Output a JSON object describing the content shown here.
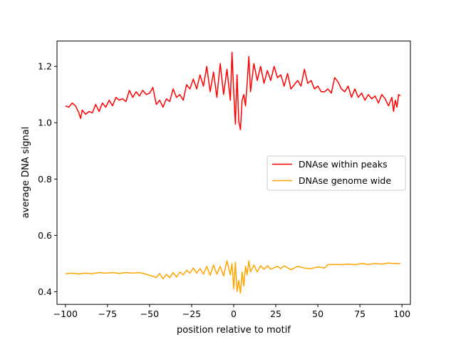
{
  "chart_data": {
    "type": "line",
    "title": "",
    "xlabel": "position relative to motif",
    "ylabel": "average DNA signal",
    "xlim": [
      -105,
      105
    ],
    "ylim": [
      0.355,
      1.29
    ],
    "xticks": [
      -100,
      -75,
      -50,
      -25,
      0,
      25,
      50,
      75,
      100
    ],
    "xtick_labels": [
      "−100",
      "−75",
      "−50",
      "−25",
      "0",
      "25",
      "50",
      "75",
      "100"
    ],
    "yticks": [
      0.4,
      0.6,
      0.8,
      1.0,
      1.2
    ],
    "ytick_labels": [
      "0.4",
      "0.6",
      "0.8",
      "1.0",
      "1.2"
    ],
    "grid": false,
    "legend_location": "center-right",
    "series": [
      {
        "name": "DNAse within peaks",
        "color": "#ff0000",
        "x": [
          -100,
          -98,
          -96,
          -94,
          -92,
          -91,
          -90,
          -88,
          -86,
          -84,
          -82,
          -80,
          -78,
          -76,
          -74,
          -72,
          -70,
          -68,
          -66,
          -64,
          -62,
          -60,
          -58,
          -56,
          -54,
          -52,
          -50,
          -48,
          -46,
          -44,
          -42,
          -40,
          -38,
          -36,
          -34,
          -32,
          -30,
          -28,
          -26,
          -24,
          -22,
          -20,
          -18,
          -16,
          -14,
          -12,
          -10,
          -8,
          -6,
          -4,
          -2,
          -1,
          0,
          1,
          2,
          3,
          4,
          5,
          6,
          7,
          8,
          9,
          10,
          12,
          14,
          16,
          18,
          20,
          22,
          24,
          26,
          28,
          30,
          32,
          34,
          36,
          38,
          40,
          42,
          44,
          46,
          48,
          50,
          52,
          54,
          56,
          58,
          60,
          62,
          64,
          66,
          68,
          70,
          72,
          74,
          76,
          78,
          80,
          82,
          84,
          86,
          88,
          90,
          92,
          94,
          95,
          96,
          97,
          98,
          99
        ],
        "values": [
          1.06,
          1.055,
          1.07,
          1.06,
          1.035,
          1.015,
          1.045,
          1.03,
          1.04,
          1.035,
          1.065,
          1.04,
          1.07,
          1.055,
          1.08,
          1.06,
          1.09,
          1.08,
          1.085,
          1.075,
          1.115,
          1.09,
          1.11,
          1.095,
          1.115,
          1.1,
          1.105,
          1.125,
          1.065,
          1.08,
          1.055,
          1.085,
          1.075,
          1.12,
          1.09,
          1.1,
          1.08,
          1.135,
          1.12,
          1.155,
          1.12,
          1.17,
          1.13,
          1.2,
          1.11,
          1.18,
          1.09,
          1.21,
          1.1,
          1.19,
          1.08,
          1.25,
          1.11,
          0.995,
          1.17,
          1.005,
          0.975,
          1.08,
          1.1,
          1.06,
          1.14,
          1.235,
          1.11,
          1.21,
          1.15,
          1.2,
          1.14,
          1.185,
          1.15,
          1.2,
          1.16,
          1.17,
          1.13,
          1.175,
          1.12,
          1.135,
          1.15,
          1.13,
          1.19,
          1.14,
          1.15,
          1.12,
          1.13,
          1.11,
          1.11,
          1.12,
          1.105,
          1.16,
          1.145,
          1.12,
          1.11,
          1.13,
          1.09,
          1.12,
          1.09,
          1.105,
          1.08,
          1.1,
          1.085,
          1.095,
          1.07,
          1.1,
          1.085,
          1.06,
          1.09,
          1.04,
          1.08,
          1.055,
          1.1,
          1.095
        ]
      },
      {
        "name": "DNAse genome wide",
        "color": "#ffa500",
        "x": [
          -100,
          -96,
          -92,
          -88,
          -84,
          -80,
          -76,
          -72,
          -68,
          -64,
          -60,
          -56,
          -52,
          -50,
          -48,
          -46,
          -44,
          -42,
          -40,
          -38,
          -36,
          -34,
          -32,
          -30,
          -28,
          -26,
          -24,
          -22,
          -20,
          -18,
          -16,
          -14,
          -12,
          -10,
          -8,
          -6,
          -4,
          -2,
          -1,
          0,
          1,
          2,
          3,
          4,
          5,
          6,
          7,
          8,
          9,
          10,
          12,
          14,
          16,
          18,
          20,
          22,
          24,
          26,
          28,
          30,
          34,
          38,
          42,
          46,
          50,
          54,
          56,
          60,
          64,
          68,
          72,
          76,
          80,
          84,
          88,
          92,
          96,
          99
        ],
        "values": [
          0.464,
          0.466,
          0.463,
          0.466,
          0.464,
          0.468,
          0.466,
          0.468,
          0.465,
          0.468,
          0.466,
          0.468,
          0.462,
          0.458,
          0.455,
          0.45,
          0.465,
          0.445,
          0.462,
          0.45,
          0.468,
          0.452,
          0.47,
          0.46,
          0.476,
          0.466,
          0.484,
          0.466,
          0.482,
          0.462,
          0.49,
          0.458,
          0.495,
          0.462,
          0.49,
          0.456,
          0.51,
          0.46,
          0.5,
          0.41,
          0.505,
          0.4,
          0.44,
          0.395,
          0.47,
          0.42,
          0.49,
          0.46,
          0.51,
          0.47,
          0.495,
          0.47,
          0.492,
          0.48,
          0.492,
          0.48,
          0.485,
          0.49,
          0.482,
          0.492,
          0.478,
          0.49,
          0.484,
          0.482,
          0.488,
          0.484,
          0.496,
          0.497,
          0.496,
          0.498,
          0.496,
          0.5,
          0.497,
          0.5,
          0.498,
          0.502,
          0.5,
          0.5
        ]
      }
    ]
  }
}
